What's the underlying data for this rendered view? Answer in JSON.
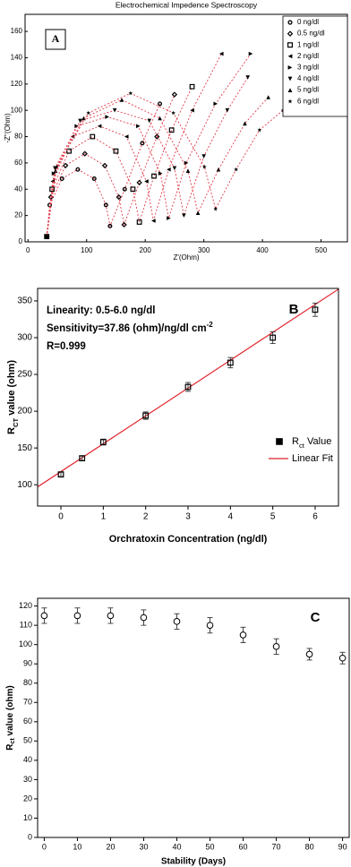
{
  "chart_data": [
    {
      "type": "scatter",
      "panel": "A",
      "title": "Electrochemical Impedence Spectroscopy",
      "x_label": "Z'(Ohm)",
      "y_label": "-Z''(Ohm)",
      "xlim": [
        -5,
        545
      ],
      "ylim": [
        0,
        173
      ],
      "xticks": [
        0,
        100,
        200,
        300,
        400,
        500
      ],
      "yticks": [
        0,
        20,
        40,
        60,
        80,
        100,
        120,
        140,
        160
      ],
      "connect_color": "#e23a4a",
      "legend": "upper right",
      "series": [
        {
          "name": "0 ng/dl",
          "marker": "circle",
          "color": "#000000",
          "x": [
            32,
            37,
            58,
            85,
            113,
            133,
            140,
            165,
            195,
            225
          ],
          "y": [
            4,
            28,
            48,
            55,
            48,
            28,
            12,
            40,
            75,
            105
          ]
        },
        {
          "name": "0.5 ng/dl",
          "marker": "diamond",
          "color": "#000000",
          "x": [
            32,
            39,
            64,
            97,
            131,
            155,
            164,
            190,
            220,
            250
          ],
          "y": [
            4,
            34,
            58,
            67,
            58,
            34,
            13,
            45,
            80,
            112
          ]
        },
        {
          "name": "1 ng/dl",
          "marker": "square",
          "color": "#000000",
          "x": [
            32,
            41,
            70,
            110,
            150,
            179,
            190,
            215,
            245,
            280
          ],
          "y": [
            4,
            40,
            69,
            80,
            69,
            40,
            15,
            50,
            85,
            118
          ]
        },
        {
          "name": "2 ng/dl",
          "marker": "triangle-left",
          "color": "#000000",
          "x": [
            32,
            42,
            76,
            122,
            168,
            202,
            214,
            240,
            280,
            330
          ],
          "y": [
            4,
            46,
            80,
            88,
            80,
            46,
            16,
            55,
            100,
            143
          ]
        },
        {
          "name": "3 ng/dl",
          "marker": "triangle-right",
          "color": "#000000",
          "x": [
            32,
            44,
            83,
            135,
            188,
            226,
            240,
            270,
            320,
            380
          ],
          "y": [
            4,
            52,
            88,
            95,
            88,
            52,
            18,
            60,
            105,
            143
          ]
        },
        {
          "name": "4 ng/dl",
          "marker": "triangle-down",
          "color": "#000000",
          "x": [
            32,
            46,
            89,
            148,
            207,
            250,
            266,
            300,
            340,
            375
          ],
          "y": [
            4,
            56,
            92,
            100,
            92,
            56,
            20,
            65,
            100,
            125
          ]
        },
        {
          "name": "5 ng/dl",
          "marker": "triangle-up",
          "color": "#000000",
          "x": [
            32,
            47,
            95,
            160,
            225,
            273,
            290,
            325,
            370,
            410
          ],
          "y": [
            4,
            54,
            94,
            108,
            94,
            54,
            22,
            55,
            90,
            110
          ]
        },
        {
          "name": "6 ng/dl",
          "marker": "star",
          "color": "#000000",
          "x": [
            32,
            49,
            103,
            175,
            248,
            301,
            320,
            355,
            395,
            435
          ],
          "y": [
            4,
            57,
            98,
            113,
            98,
            57,
            25,
            55,
            85,
            100
          ]
        }
      ]
    },
    {
      "type": "scatter",
      "panel": "B",
      "x_label": "Orchratoxin Concentration (ng/dl)",
      "y_label": {
        "parts": [
          "R",
          "CT",
          " value (ohm)"
        ],
        "shift": "sub"
      },
      "annotations": [
        {
          "parts": [
            "Linearity: 0.5-6.0 ng/dl"
          ]
        },
        {
          "parts": [
            "Sensitivity=37.86 (ohm)/ng/dl cm",
            "-2"
          ],
          "shift": "super"
        },
        {
          "parts": [
            "R=0.999"
          ]
        }
      ],
      "xlim": [
        -0.55,
        6.55
      ],
      "ylim": [
        71,
        367
      ],
      "xticks": [
        0,
        1,
        2,
        3,
        4,
        5,
        6
      ],
      "yticks": [
        100,
        150,
        200,
        250,
        300,
        350
      ],
      "x": [
        0,
        0.5,
        1,
        2,
        3,
        4,
        5,
        6
      ],
      "legend": "lower right",
      "series": [
        {
          "name": {
            "parts": [
              "R",
              "ct",
              " Value"
            ],
            "shift": "sub"
          },
          "marker": "square",
          "color": "#000000",
          "y": [
            114,
            136,
            158,
            194,
            233,
            266,
            300,
            338
          ],
          "errors": [
            3,
            3,
            4,
            5,
            6,
            7,
            8,
            9
          ]
        }
      ],
      "fit": {
        "name": "Linear Fit",
        "color": "#e0202a",
        "x": [
          -0.55,
          6.55
        ],
        "y": [
          97,
          366
        ]
      }
    },
    {
      "type": "scatter",
      "panel": "C",
      "x_label": "Stability (Days)",
      "y_label": {
        "parts": [
          "R",
          "ct",
          " value (ohm)"
        ],
        "shift": "sub"
      },
      "xlim": [
        -2,
        92
      ],
      "ylim": [
        0,
        124
      ],
      "xticks": [
        0,
        10,
        20,
        30,
        40,
        50,
        60,
        70,
        80,
        90
      ],
      "yticks": [
        0,
        10,
        20,
        30,
        40,
        50,
        60,
        70,
        80,
        90,
        100,
        110,
        120
      ],
      "x": [
        0,
        10,
        20,
        30,
        40,
        50,
        60,
        70,
        80,
        90
      ],
      "series": [
        {
          "marker": "open-circle",
          "color": "#000000",
          "y": [
            115,
            115,
            115,
            114,
            112,
            110,
            105,
            99,
            95,
            93
          ],
          "errors": [
            4,
            4,
            4,
            4,
            4,
            4,
            4,
            4,
            3,
            3
          ]
        }
      ]
    }
  ]
}
